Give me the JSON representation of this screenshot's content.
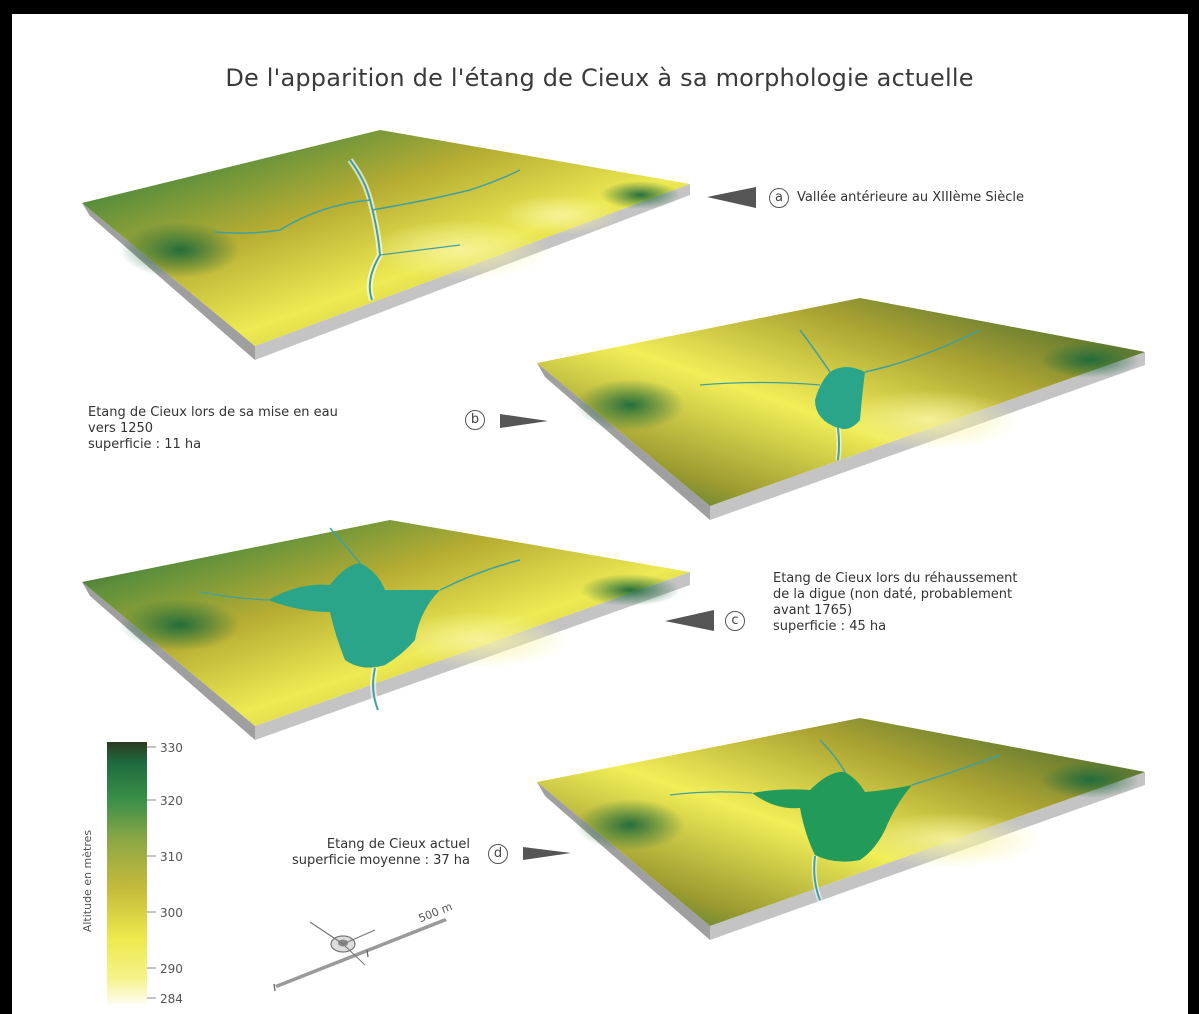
{
  "title": "De l'apparition de l'étang de Cieux à sa morphologie actuelle",
  "colors": {
    "low": "#fbfbe6",
    "mid_low": "#f1ef4a",
    "mid": "#b5ae33",
    "mid_high": "#6fa64a",
    "high": "#1f6b3f",
    "top": "#2e3b20",
    "water": "#2aa58a",
    "river": "#3fa0a0",
    "side": "#b8b8b8",
    "pointer": "#555555"
  },
  "stages": [
    {
      "letter": "a",
      "lines": [
        "Vallée antérieure au XIIIème Siècle"
      ]
    },
    {
      "letter": "b",
      "lines": [
        "Etang de Cieux lors de sa mise en eau",
        "vers 1250",
        "superficie : 11 ha"
      ]
    },
    {
      "letter": "c",
      "lines": [
        "Etang de Cieux lors du réhaussement",
        "de la digue (non daté, probablement",
        "avant 1765)",
        "superficie : 45 ha"
      ]
    },
    {
      "letter": "d",
      "lines": [
        "Etang de Cieux actuel",
        "superficie moyenne : 37 ha"
      ]
    }
  ],
  "legend": {
    "axis_title": "Altitude en mètres",
    "ticks": [
      "330",
      "320",
      "310",
      "300",
      "290",
      "284"
    ]
  },
  "scale": {
    "label": "500 m"
  }
}
